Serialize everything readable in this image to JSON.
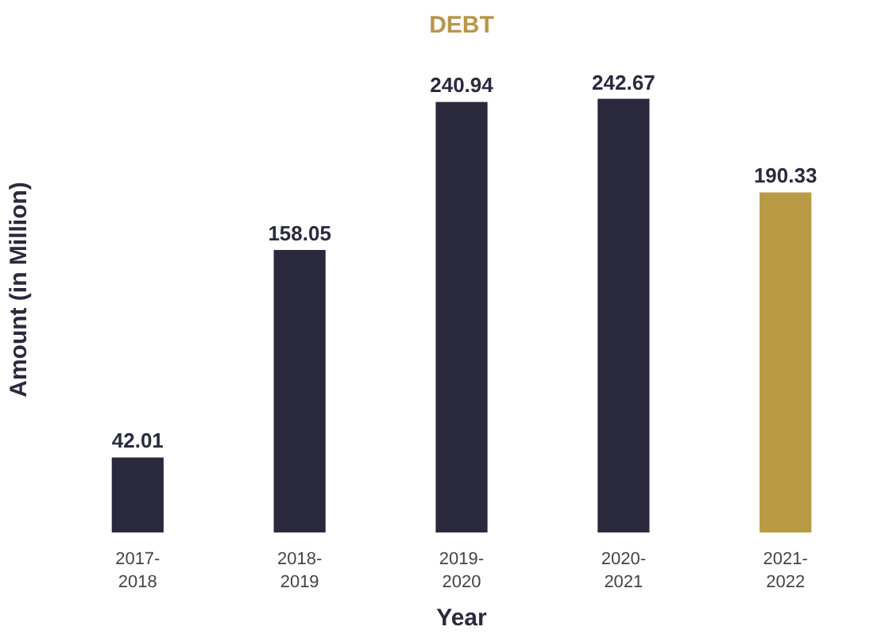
{
  "chart_data": {
    "type": "bar",
    "title": "DEBT",
    "xlabel": "Year",
    "ylabel": "Amount (in Million)",
    "categories": [
      "2017-\n2018",
      "2018-\n2019",
      "2019-\n2020",
      "2020-\n2021",
      "2021-\n2022"
    ],
    "values": [
      42.01,
      158.05,
      240.94,
      242.67,
      190.33
    ],
    "colors": [
      "#2b2a3d",
      "#2b2a3d",
      "#2b2a3d",
      "#2b2a3d",
      "#b99a45"
    ],
    "data_labels": true
  }
}
